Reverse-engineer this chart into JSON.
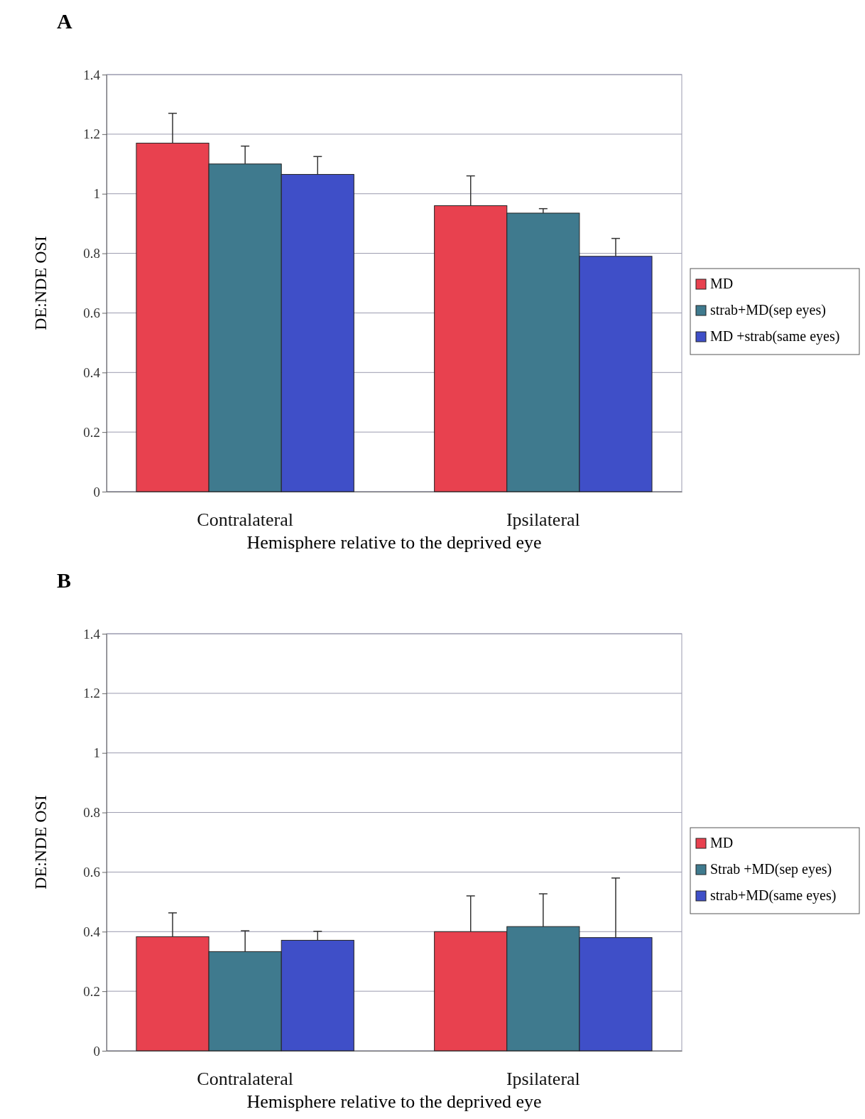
{
  "chart_data": [
    {
      "type": "bar",
      "title": "A",
      "xlabel": "Hemisphere relative to the deprived eye",
      "ylabel": "DE:NDE OSI",
      "categories": [
        "Contralateral",
        "Ipsilateral"
      ],
      "series": [
        {
          "name": "MD",
          "color": "#e8414f",
          "values": [
            1.17,
            0.96
          ],
          "errors": [
            [
              1.17,
              1.27
            ],
            [
              0.96,
              1.06
            ]
          ]
        },
        {
          "name": "strab+MD(sep eyes)",
          "color": "#3f7a8e",
          "values": [
            1.1,
            0.935
          ],
          "errors": [
            [
              1.1,
              1.16
            ],
            [
              0.935,
              0.95
            ]
          ]
        },
        {
          "name": "MD +strab(same eyes)",
          "color": "#3f4fc8",
          "values": [
            1.065,
            0.79
          ],
          "errors": [
            [
              1.065,
              1.125
            ],
            [
              0.79,
              0.85
            ]
          ]
        }
      ],
      "ylim": [
        0,
        1.4
      ],
      "yticks": [
        0,
        0.2,
        0.4,
        0.6,
        0.8,
        1,
        1.2,
        1.4
      ],
      "grid": "y",
      "legend": "right"
    },
    {
      "type": "bar",
      "title": "B",
      "xlabel": "Hemisphere relative to the deprived eye",
      "ylabel": "DE:NDE OSI",
      "categories": [
        "Contralateral",
        "Ipsilateral"
      ],
      "series": [
        {
          "name": "MD",
          "color": "#e8414f",
          "values": [
            0.383,
            0.4
          ],
          "errors": [
            [
              0.383,
              0.463
            ],
            [
              0.4,
              0.52
            ]
          ]
        },
        {
          "name": "Strab +MD(sep eyes)",
          "color": "#3f7a8e",
          "values": [
            0.333,
            0.417
          ],
          "errors": [
            [
              0.333,
              0.403
            ],
            [
              0.417,
              0.527
            ]
          ]
        },
        {
          "name": "strab+MD(same eyes)",
          "color": "#3f4fc8",
          "values": [
            0.371,
            0.38
          ],
          "errors": [
            [
              0.371,
              0.401
            ],
            [
              0.38,
              0.58
            ]
          ]
        }
      ],
      "ylim": [
        0,
        1.4
      ],
      "yticks": [
        0,
        0.2,
        0.4,
        0.6,
        0.8,
        1,
        1.2,
        1.4
      ],
      "grid": "y",
      "legend": "right"
    }
  ]
}
